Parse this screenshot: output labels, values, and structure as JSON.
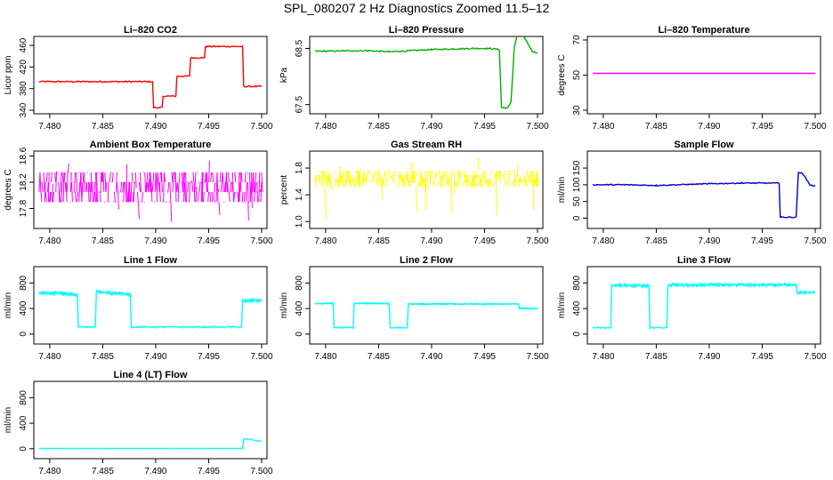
{
  "page": {
    "title": "SPL_080207  2 Hz Diagnostics Zoomed 11.5–12"
  },
  "chart_data": [
    {
      "type": "line",
      "title": "Li–820 CO2",
      "xlabel": "",
      "ylabel": "Licor ppm",
      "color": "#ff0000",
      "xlim": [
        7.479,
        7.5
      ],
      "ylim": [
        340,
        470
      ],
      "xticks": [
        "7.480",
        "7.485",
        "7.490",
        "7.495",
        "7.500"
      ],
      "yticks": [
        340,
        380,
        420,
        460
      ],
      "noise": 1.2,
      "series": [
        {
          "x": [
            7.479,
            7.4897,
            7.4898,
            7.4906,
            7.4907,
            7.4919,
            7.492,
            7.4932,
            7.4933,
            7.4946,
            7.4947,
            7.4982,
            7.4983,
            7.5
          ],
          "y": [
            393,
            393,
            345,
            345,
            366,
            366,
            403,
            403,
            437,
            437,
            458,
            458,
            384,
            384
          ]
        }
      ]
    },
    {
      "type": "line",
      "title": "Li–820 Pressure",
      "xlabel": "",
      "ylabel": "kPa",
      "color": "#00b000",
      "xlim": [
        7.479,
        7.5
      ],
      "ylim": [
        67.4,
        68.65
      ],
      "xticks": [
        "7.480",
        "7.485",
        "7.490",
        "7.495",
        "7.500"
      ],
      "yticks": [
        "67.5",
        "68.5"
      ],
      "noise": 0.01,
      "series": [
        {
          "x": [
            7.479,
            7.484,
            7.486,
            7.488,
            7.49,
            7.492,
            7.494,
            7.4955,
            7.4964,
            7.4966,
            7.4972,
            7.4975,
            7.4978,
            7.4981,
            7.4984,
            7.4989,
            7.4995,
            7.5
          ],
          "y": [
            68.45,
            68.46,
            68.44,
            68.46,
            68.48,
            68.49,
            68.5,
            68.5,
            68.48,
            67.45,
            67.44,
            67.55,
            68.5,
            68.77,
            68.77,
            68.65,
            68.45,
            68.42
          ]
        }
      ]
    },
    {
      "type": "line",
      "title": "Li–820 Temperature",
      "xlabel": "",
      "ylabel": "degrees C",
      "color": "#ff00ff",
      "xlim": [
        7.479,
        7.5
      ],
      "ylim": [
        30,
        70
      ],
      "xticks": [
        "7.480",
        "7.485",
        "7.490",
        "7.495",
        "7.500"
      ],
      "yticks": [
        30,
        50,
        70
      ],
      "noise": 0,
      "series": [
        {
          "x": [
            7.479,
            7.5
          ],
          "y": [
            51,
            51
          ]
        }
      ]
    },
    {
      "type": "line",
      "title": "Ambient Box Temperature",
      "xlabel": "",
      "ylabel": "degrees C",
      "color": "#ff00ff",
      "xlim": [
        7.479,
        7.5
      ],
      "ylim": [
        17.55,
        18.62
      ],
      "xticks": [
        "7.480",
        "7.485",
        "7.490",
        "7.495",
        "7.500"
      ],
      "yticks": [
        "17.8",
        "18.2",
        "18.6"
      ],
      "noise_lines": {
        "values": [
          17.9,
          18.05,
          18.2,
          18.35
        ],
        "min": 17.55,
        "max": 18.6
      },
      "series": [
        {
          "x": [
            7.479,
            7.5
          ],
          "y": [
            18.15,
            18.15
          ]
        }
      ]
    },
    {
      "type": "line",
      "title": "Gas Stream RH",
      "xlabel": "",
      "ylabel": "percent",
      "color": "#ffff00",
      "xlim": [
        7.479,
        7.5
      ],
      "ylim": [
        0.95,
        2.0
      ],
      "xticks": [
        "7.480",
        "7.485",
        "7.490",
        "7.495",
        "7.500"
      ],
      "yticks": [
        "1.0",
        "1.4",
        "1.8"
      ],
      "noise_lines": {
        "values": [
          1.52,
          1.58,
          1.64,
          1.7,
          1.76
        ],
        "min": 1.0,
        "max": 1.98
      },
      "series": [
        {
          "x": [
            7.479,
            7.5
          ],
          "y": [
            1.65,
            1.65
          ]
        }
      ]
    },
    {
      "type": "line",
      "title": "Sample Flow",
      "xlabel": "",
      "ylabel": "ml/min",
      "color": "#0000cc",
      "xlim": [
        7.479,
        7.5
      ],
      "ylim": [
        -20,
        190
      ],
      "xticks": [
        "7.480",
        "7.485",
        "7.490",
        "7.495",
        "7.500"
      ],
      "yticks": [
        0,
        50,
        100,
        150
      ],
      "noise": 1.5,
      "series": [
        {
          "x": [
            7.479,
            7.482,
            7.485,
            7.488,
            7.49,
            7.493,
            7.4966,
            7.4967,
            7.4982,
            7.4984,
            7.4988,
            7.4995,
            7.5
          ],
          "y": [
            100,
            100,
            98,
            101,
            103,
            105,
            105,
            3,
            3,
            135,
            135,
            100,
            95
          ]
        }
      ]
    },
    {
      "type": "line",
      "title": "Line 1 Flow",
      "xlabel": "",
      "ylabel": "ml/min",
      "color": "#00ffff",
      "xlim": [
        7.479,
        7.5
      ],
      "ylim": [
        -100,
        1000
      ],
      "xticks": [
        "7.480",
        "7.485",
        "7.490",
        "7.495",
        "7.500"
      ],
      "yticks": [
        0,
        400,
        800
      ],
      "noise": 12,
      "band": 40,
      "series": [
        {
          "x": [
            7.479,
            7.4814,
            7.4826,
            7.4827,
            7.4843,
            7.4844,
            7.4876,
            7.4877,
            7.4981,
            7.4982,
            7.5
          ],
          "y": [
            650,
            630,
            610,
            110,
            110,
            660,
            620,
            110,
            110,
            520,
            530
          ]
        }
      ]
    },
    {
      "type": "line",
      "title": "Line 2 Flow",
      "xlabel": "",
      "ylabel": "ml/min",
      "color": "#00ffff",
      "xlim": [
        7.479,
        7.5
      ],
      "ylim": [
        -100,
        1000
      ],
      "xticks": [
        "7.480",
        "7.485",
        "7.490",
        "7.495",
        "7.500"
      ],
      "yticks": [
        0,
        400,
        800
      ],
      "noise": 8,
      "band": 20,
      "series": [
        {
          "x": [
            7.479,
            7.4807,
            7.4808,
            7.4826,
            7.4827,
            7.486,
            7.4861,
            7.4877,
            7.4878,
            7.4982,
            7.4983,
            7.5
          ],
          "y": [
            480,
            480,
            100,
            100,
            480,
            480,
            100,
            100,
            470,
            470,
            400,
            400
          ]
        }
      ]
    },
    {
      "type": "line",
      "title": "Line 3 Flow",
      "xlabel": "",
      "ylabel": "ml/min",
      "color": "#00ffff",
      "xlim": [
        7.479,
        7.5
      ],
      "ylim": [
        -100,
        1000
      ],
      "xticks": [
        "7.480",
        "7.485",
        "7.490",
        "7.495",
        "7.500"
      ],
      "yticks": [
        0,
        400,
        800
      ],
      "noise": 10,
      "band": 40,
      "series": [
        {
          "x": [
            7.479,
            7.4807,
            7.4808,
            7.4843,
            7.4844,
            7.486,
            7.4861,
            7.4982,
            7.4983,
            7.5
          ],
          "y": [
            100,
            100,
            760,
            760,
            100,
            100,
            770,
            770,
            650,
            650
          ]
        }
      ]
    },
    {
      "type": "line",
      "title": "Line 4 (LT) Flow",
      "xlabel": "",
      "ylabel": "ml/min",
      "color": "#00ffff",
      "xlim": [
        7.479,
        7.5
      ],
      "ylim": [
        -100,
        1000
      ],
      "xticks": [
        "7.480",
        "7.485",
        "7.490",
        "7.495",
        "7.500"
      ],
      "yticks": [
        0,
        400,
        800
      ],
      "noise": 1,
      "series": [
        {
          "x": [
            7.479,
            7.4982,
            7.4983,
            7.4987,
            7.4995,
            7.5
          ],
          "y": [
            5,
            5,
            150,
            155,
            125,
            120
          ]
        }
      ]
    }
  ]
}
